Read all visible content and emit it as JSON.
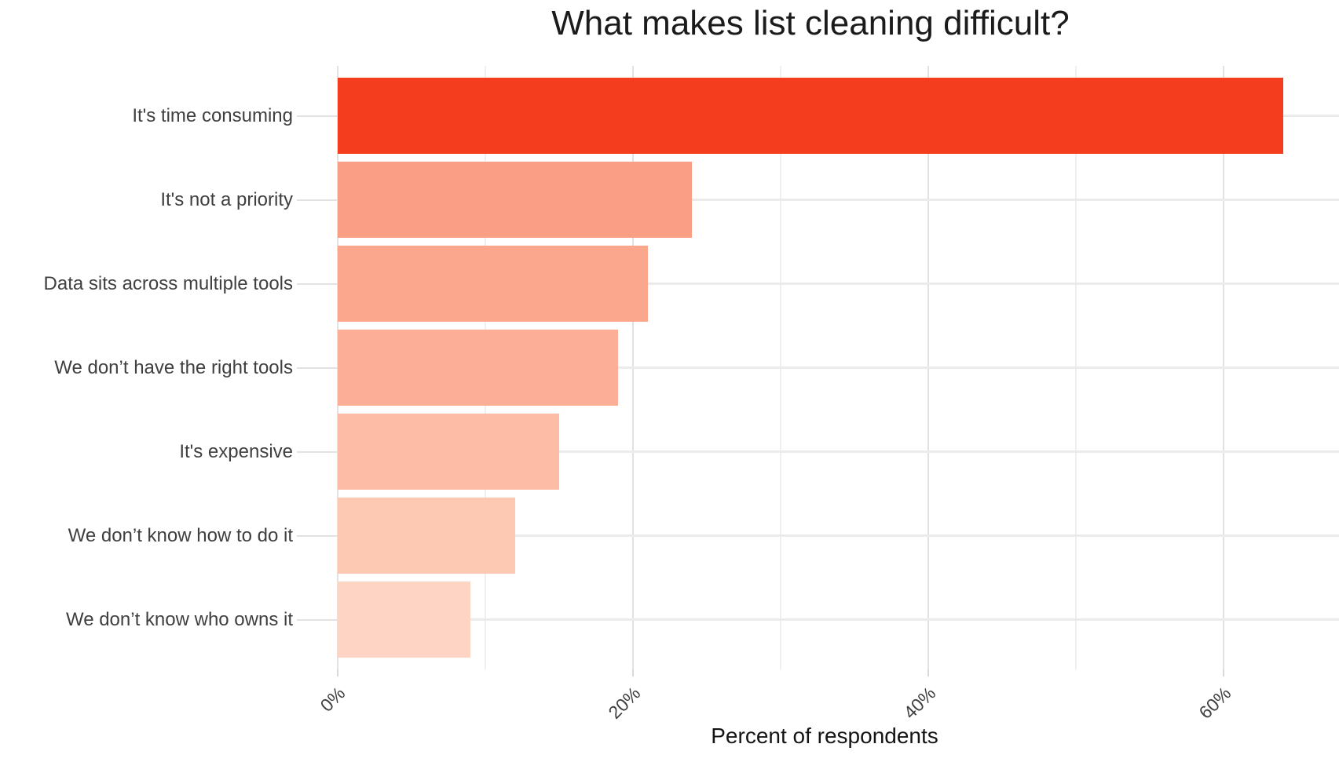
{
  "chart_data": {
    "type": "bar",
    "orientation": "horizontal",
    "title": "What makes list cleaning difficult?",
    "xlabel": "Percent of respondents",
    "ylabel": "",
    "categories": [
      "It's time consuming",
      "It's not a priority",
      "Data sits across multiple tools",
      "We don’t have the right tools",
      "It's expensive",
      "We don’t know how to do it",
      "We don’t know who owns it"
    ],
    "values": [
      64,
      24,
      21,
      19,
      15,
      12,
      9
    ],
    "unit": "percent",
    "xlim": [
      0,
      67.8
    ],
    "x_major_ticks": [
      0,
      20,
      40,
      60
    ],
    "x_minor_ticks": [
      10,
      30,
      50
    ],
    "x_tick_labels": [
      "0%",
      "20%",
      "40%",
      "60%"
    ],
    "bar_colors": [
      "#F43C1E",
      "#FA9E85",
      "#FBA78E",
      "#FCAE96",
      "#FDBCA5",
      "#FEC9B3",
      "#FED5C4"
    ],
    "grid": "major and minor vertical gridlines, horizontal gridline per category",
    "legend": "none",
    "background": "#ffffff"
  }
}
